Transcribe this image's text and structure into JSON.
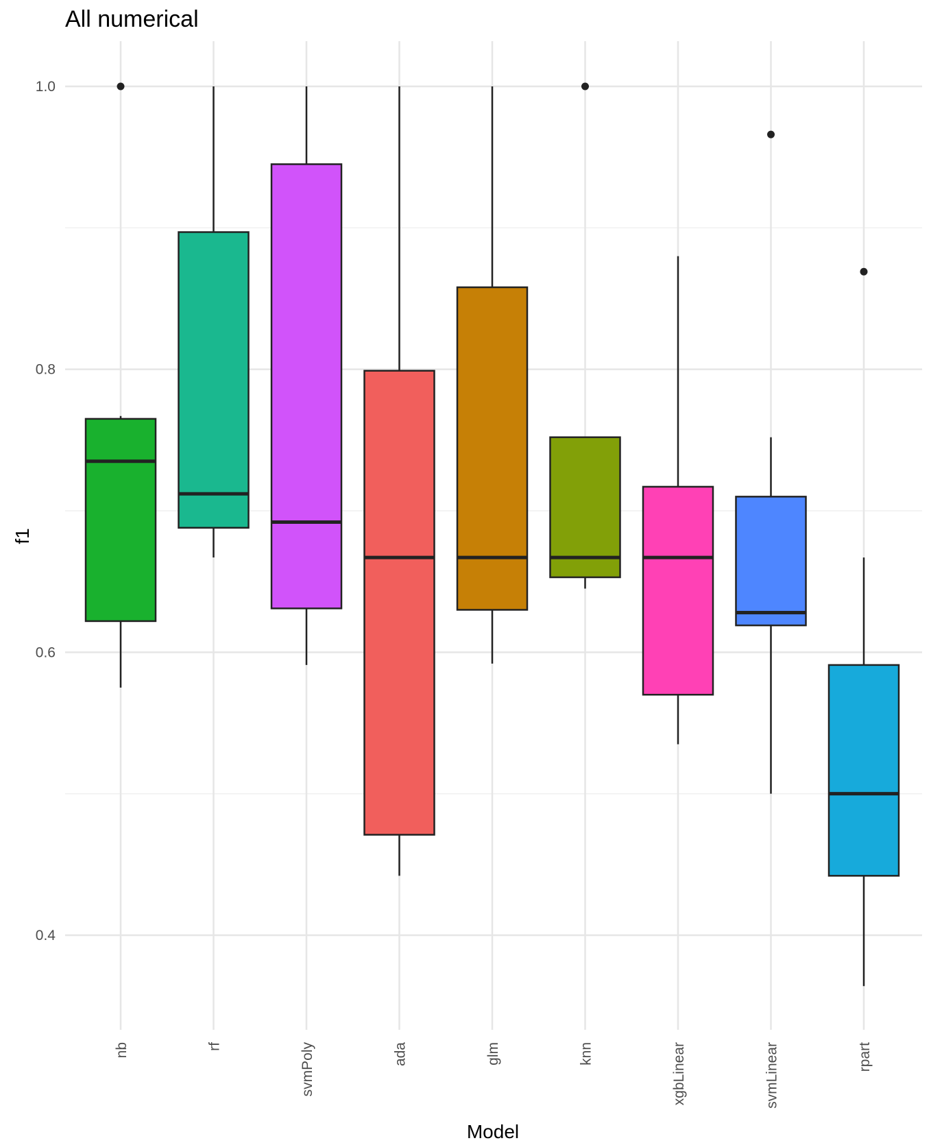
{
  "chart_data": {
    "type": "boxplot",
    "title": "All numerical",
    "xlabel": "Model",
    "ylabel": "f1",
    "ylim": [
      0.33,
      1.03
    ],
    "yticks": [
      0.4,
      0.6,
      0.8,
      1.0
    ],
    "ytick_labels": [
      "0.4",
      "0.6",
      "0.8",
      "1.0"
    ],
    "grid": true,
    "legend": "none",
    "categories": [
      "nb",
      "rf",
      "svmPoly",
      "ada",
      "glm",
      "knn",
      "xgbLinear",
      "svmLinear",
      "rpart"
    ],
    "boxes": [
      {
        "name": "nb",
        "color": "#19B12E",
        "whisker_low": 0.575,
        "q1": 0.622,
        "median": 0.735,
        "q3": 0.765,
        "whisker_high": 0.767,
        "outliers": [
          1.0
        ]
      },
      {
        "name": "rf",
        "color": "#1AB88F",
        "whisker_low": 0.667,
        "q1": 0.688,
        "median": 0.712,
        "q3": 0.897,
        "whisker_high": 1.0,
        "outliers": []
      },
      {
        "name": "svmPoly",
        "color": "#D153FA",
        "whisker_low": 0.591,
        "q1": 0.631,
        "median": 0.692,
        "q3": 0.945,
        "whisker_high": 1.0,
        "outliers": []
      },
      {
        "name": "ada",
        "color": "#F15F5C",
        "whisker_low": 0.442,
        "q1": 0.471,
        "median": 0.667,
        "q3": 0.799,
        "whisker_high": 1.0,
        "outliers": []
      },
      {
        "name": "glm",
        "color": "#C68006",
        "whisker_low": 0.592,
        "q1": 0.63,
        "median": 0.667,
        "q3": 0.858,
        "whisker_high": 1.0,
        "outliers": []
      },
      {
        "name": "knn",
        "color": "#82A008",
        "whisker_low": 0.645,
        "q1": 0.653,
        "median": 0.667,
        "q3": 0.752,
        "whisker_high": 0.752,
        "outliers": [
          1.0
        ]
      },
      {
        "name": "xgbLinear",
        "color": "#FF41B5",
        "whisker_low": 0.535,
        "q1": 0.57,
        "median": 0.667,
        "q3": 0.717,
        "whisker_high": 0.88,
        "outliers": []
      },
      {
        "name": "svmLinear",
        "color": "#4E86FF",
        "whisker_low": 0.5,
        "q1": 0.619,
        "median": 0.628,
        "q3": 0.71,
        "whisker_high": 0.752,
        "outliers": [
          0.966
        ]
      },
      {
        "name": "rpart",
        "color": "#17AADB",
        "whisker_low": 0.364,
        "q1": 0.442,
        "median": 0.5,
        "q3": 0.591,
        "whisker_high": 0.667,
        "outliers": [
          0.869
        ]
      }
    ]
  }
}
